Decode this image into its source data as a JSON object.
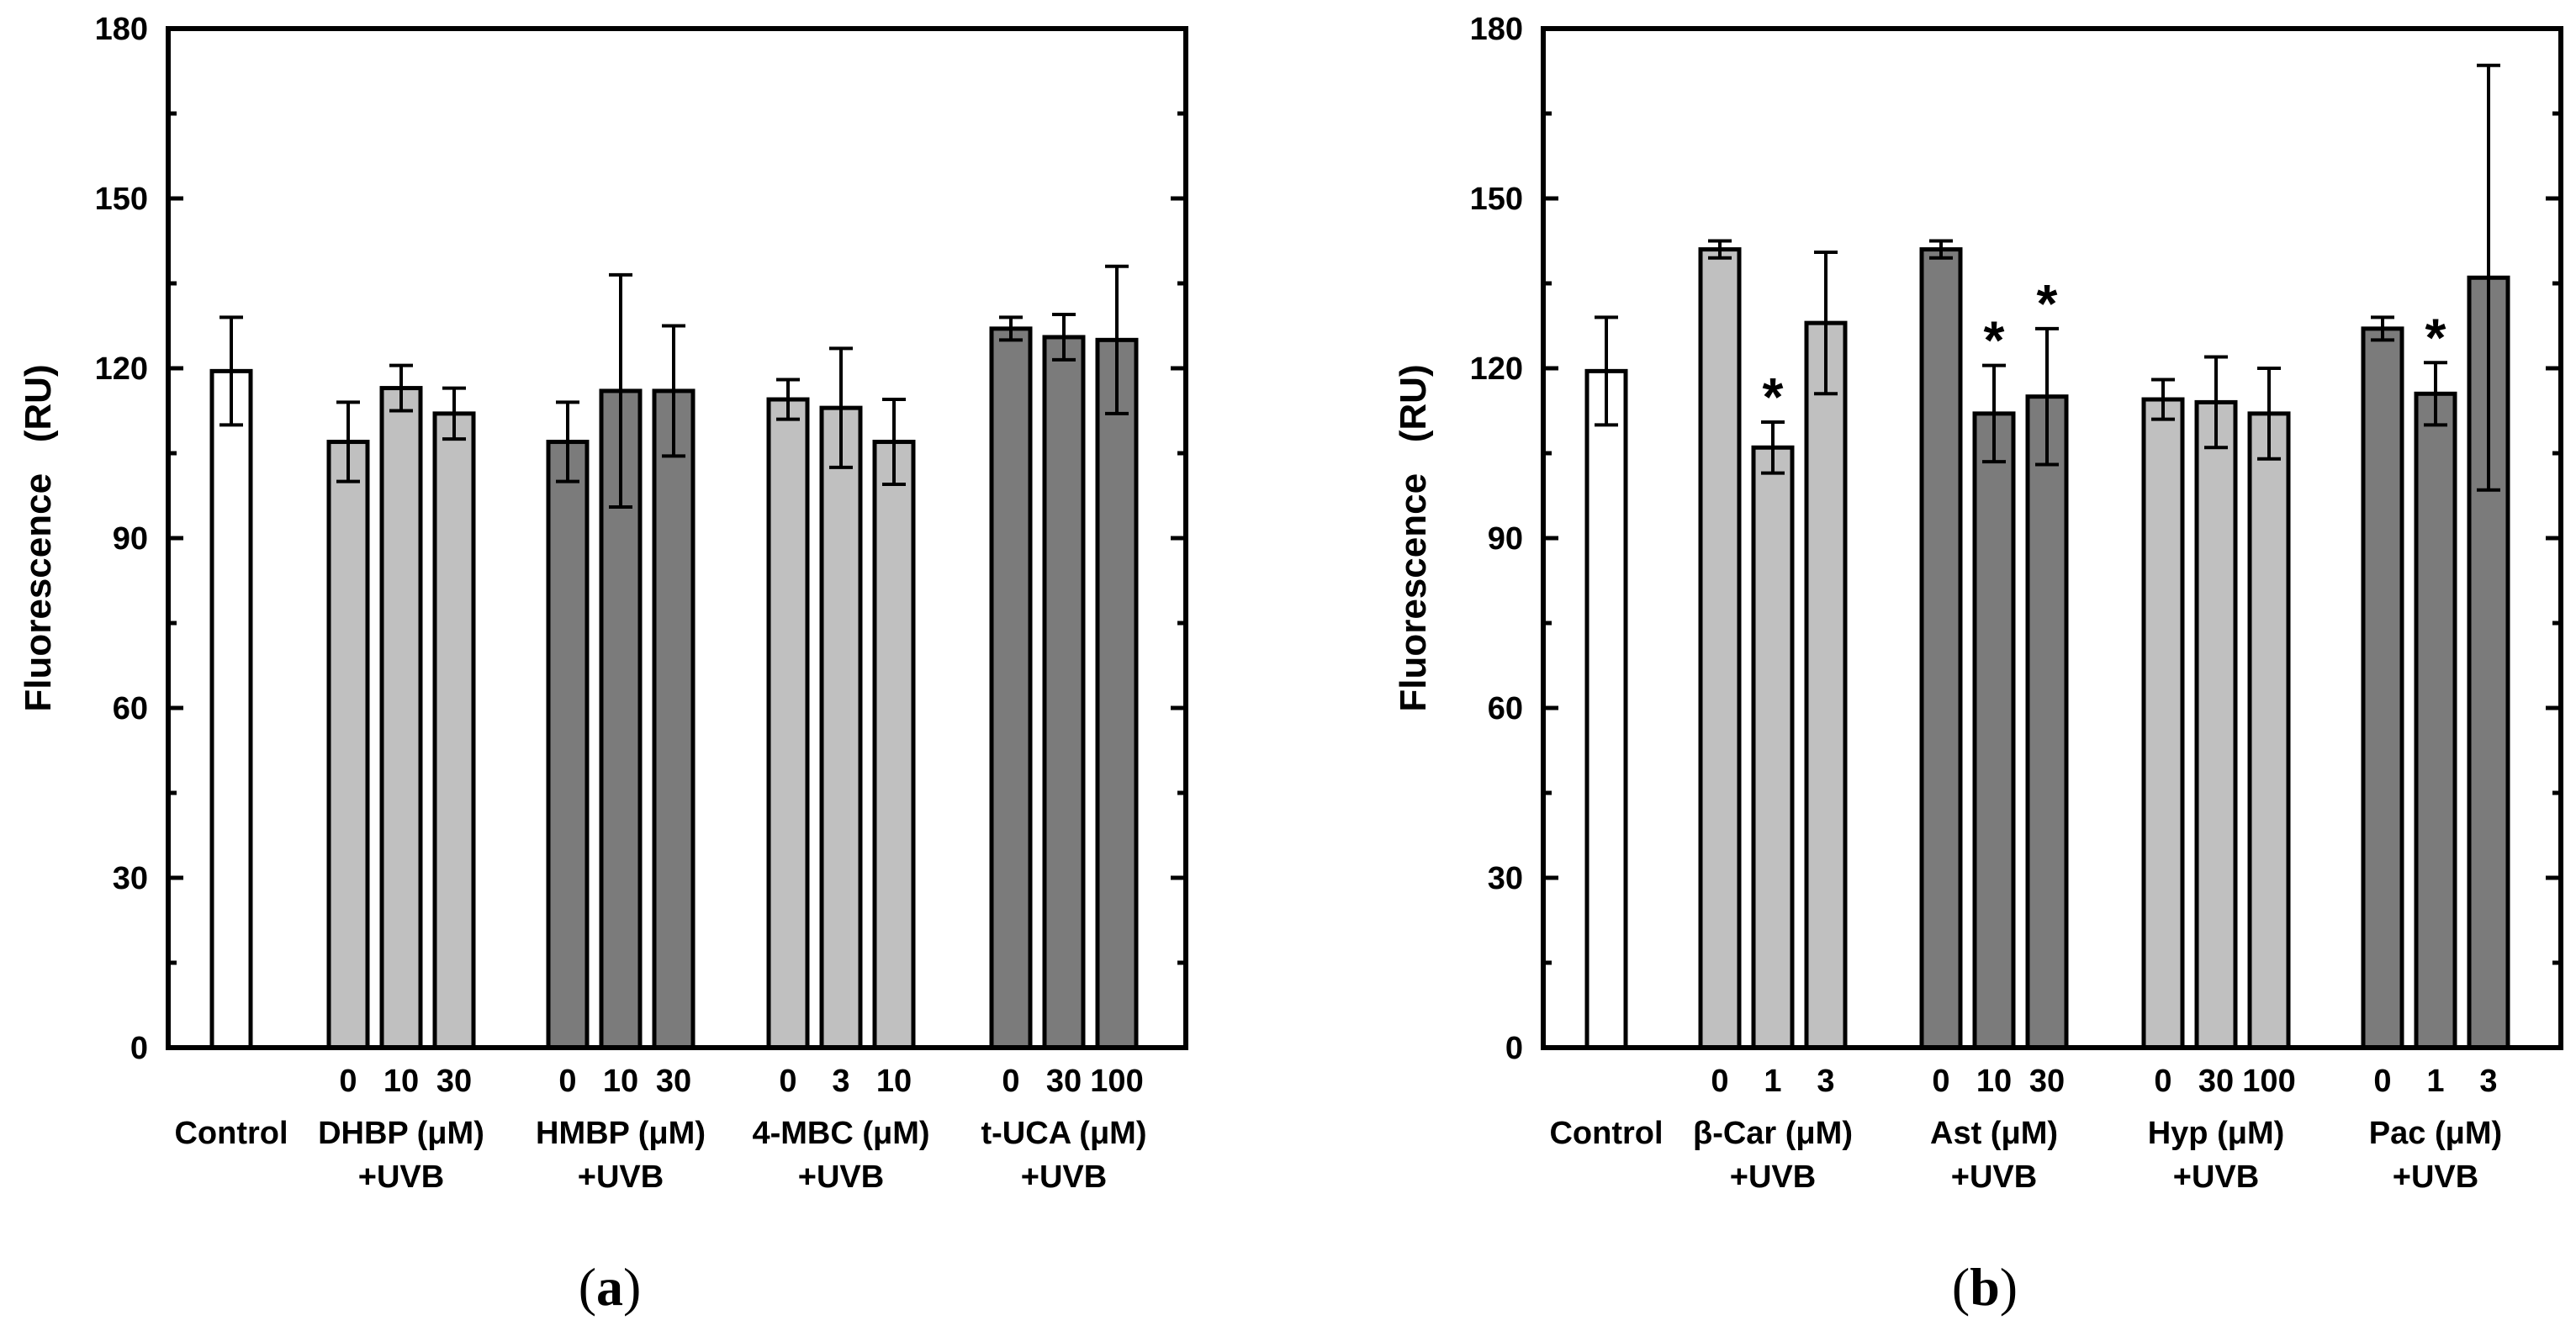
{
  "colors": {
    "white": "#ffffff",
    "light": "#c0c0c0",
    "dark": "#7b7b7b",
    "stroke": "#000000"
  },
  "chart_data": [
    {
      "type": "bar",
      "panel_label": "a",
      "ylabel": "Fluorescence   (RU)",
      "ylim": [
        0,
        180
      ],
      "yticks": [
        0,
        30,
        60,
        90,
        120,
        150,
        180
      ],
      "groups": [
        {
          "name_lines": [
            "Control"
          ],
          "bars": [
            {
              "label": "",
              "value": 119.5,
              "err": 9.5,
              "color": "white",
              "star": false
            }
          ]
        },
        {
          "name_lines": [
            "DHBP (μM)",
            "+UVB"
          ],
          "bars": [
            {
              "label": "0",
              "value": 107,
              "err": 7,
              "color": "light",
              "star": false
            },
            {
              "label": "10",
              "value": 116.5,
              "err": 4,
              "color": "light",
              "star": false
            },
            {
              "label": "30",
              "value": 112,
              "err": 4.5,
              "color": "light",
              "star": false
            }
          ]
        },
        {
          "name_lines": [
            "HMBP (μM)",
            "+UVB"
          ],
          "bars": [
            {
              "label": "0",
              "value": 107,
              "err": 7,
              "color": "dark",
              "star": false
            },
            {
              "label": "10",
              "value": 116,
              "err": 20.5,
              "color": "dark",
              "star": false
            },
            {
              "label": "30",
              "value": 116,
              "err": 11.5,
              "color": "dark",
              "star": false
            }
          ]
        },
        {
          "name_lines": [
            "4-MBC (μM)",
            "+UVB"
          ],
          "bars": [
            {
              "label": "0",
              "value": 114.5,
              "err": 3.5,
              "color": "light",
              "star": false
            },
            {
              "label": "3",
              "value": 113,
              "err": 10.5,
              "color": "light",
              "star": false
            },
            {
              "label": "10",
              "value": 107,
              "err": 7.5,
              "color": "light",
              "star": false
            }
          ]
        },
        {
          "name_lines": [
            "t-UCA (μM)",
            "+UVB"
          ],
          "bars": [
            {
              "label": "0",
              "value": 127,
              "err": 2,
              "color": "dark",
              "star": false
            },
            {
              "label": "30",
              "value": 125.5,
              "err": 4,
              "color": "dark",
              "star": false
            },
            {
              "label": "100",
              "value": 125,
              "err": 13,
              "color": "dark",
              "star": false
            }
          ]
        }
      ]
    },
    {
      "type": "bar",
      "panel_label": "b",
      "ylabel": "Fluorescence   (RU)",
      "ylim": [
        0,
        180
      ],
      "yticks": [
        0,
        30,
        60,
        90,
        120,
        150,
        180
      ],
      "groups": [
        {
          "name_lines": [
            "Control"
          ],
          "bars": [
            {
              "label": "",
              "value": 119.5,
              "err": 9.5,
              "color": "white",
              "star": false
            }
          ]
        },
        {
          "name_lines": [
            "β-Car (μM)",
            "+UVB"
          ],
          "bars": [
            {
              "label": "0",
              "value": 141,
              "err": 1.5,
              "color": "light",
              "star": false
            },
            {
              "label": "1",
              "value": 106,
              "err": 4.5,
              "color": "light",
              "star": true
            },
            {
              "label": "3",
              "value": 128,
              "err": 12.5,
              "color": "light",
              "star": false
            }
          ]
        },
        {
          "name_lines": [
            "Ast (μM)",
            "+UVB"
          ],
          "bars": [
            {
              "label": "0",
              "value": 141,
              "err": 1.5,
              "color": "dark",
              "star": false
            },
            {
              "label": "10",
              "value": 112,
              "err": 8.5,
              "color": "dark",
              "star": true
            },
            {
              "label": "30",
              "value": 115,
              "err": 12,
              "color": "dark",
              "star": true
            }
          ]
        },
        {
          "name_lines": [
            "Hyp (μM)",
            "+UVB"
          ],
          "bars": [
            {
              "label": "0",
              "value": 114.5,
              "err": 3.5,
              "color": "light",
              "star": false
            },
            {
              "label": "30",
              "value": 114,
              "err": 8,
              "color": "light",
              "star": false
            },
            {
              "label": "100",
              "value": 112,
              "err": 8,
              "color": "light",
              "star": false
            }
          ]
        },
        {
          "name_lines": [
            "Pac (μM)",
            "+UVB"
          ],
          "bars": [
            {
              "label": "0",
              "value": 127,
              "err": 2,
              "color": "dark",
              "star": false
            },
            {
              "label": "1",
              "value": 115.5,
              "err": 5.5,
              "color": "dark",
              "star": true
            },
            {
              "label": "3",
              "value": 136,
              "err": 37.5,
              "color": "dark",
              "star": false
            }
          ]
        }
      ]
    }
  ]
}
